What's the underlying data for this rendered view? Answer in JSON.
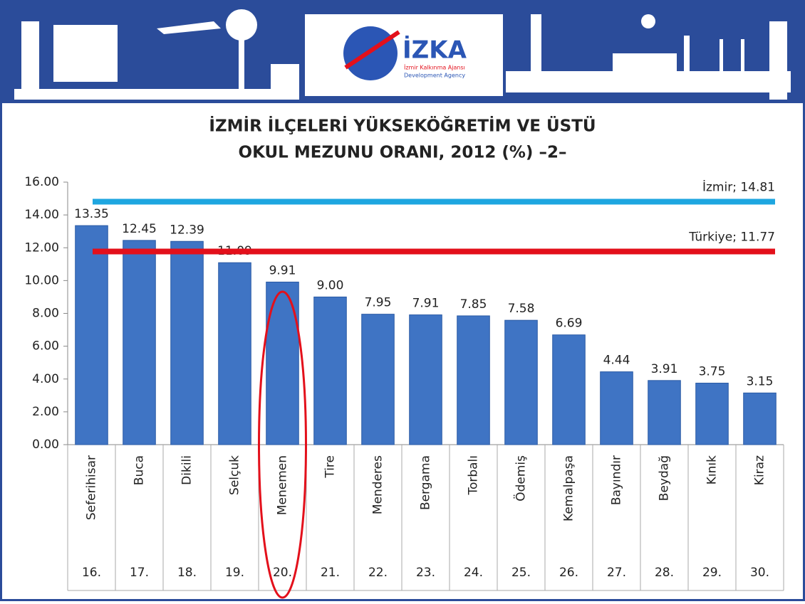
{
  "header": {
    "logo": "İZKA",
    "agency_tr": "İzmir Kalkınma Ajansı",
    "agency_en": "Development Agency"
  },
  "chart_data": {
    "type": "bar",
    "title": "İZMİR İLÇELERİ YÜKSEKÖĞRETİM VE ÜSTÜ",
    "subtitle": "OKUL MEZUNU ORANI, 2012 (%) –2–",
    "categories": [
      "Seferihisar",
      "Buca",
      "Dikili",
      "Selçuk",
      "Menemen",
      "Tire",
      "Menderes",
      "Bergama",
      "Torbalı",
      "Ödemiş",
      "Kemalpaşa",
      "Bayındır",
      "Beydağ",
      "Kınık",
      "Kiraz"
    ],
    "ranks": [
      "16.",
      "17.",
      "18.",
      "19.",
      "20.",
      "21.",
      "22.",
      "23.",
      "24.",
      "25.",
      "26.",
      "27.",
      "28.",
      "29.",
      "30."
    ],
    "values": [
      13.35,
      12.45,
      12.39,
      11.09,
      9.91,
      9.0,
      7.95,
      7.91,
      7.85,
      7.58,
      6.69,
      4.44,
      3.91,
      3.75,
      3.15
    ],
    "value_labels": [
      "13.35",
      "12.45",
      "12.39",
      "11.09",
      "9.91",
      "9.00",
      "7.95",
      "7.91",
      "7.85",
      "7.58",
      "6.69",
      "4.44",
      "3.91",
      "3.75",
      "3.15"
    ],
    "color": "#3f74c4",
    "ylim": [
      0,
      16
    ],
    "yticks": [
      {
        "value": 0,
        "label": "0.00"
      },
      {
        "value": 2,
        "label": "2.00"
      },
      {
        "value": 4,
        "label": "4.00"
      },
      {
        "value": 6,
        "label": "6.00"
      },
      {
        "value": 8,
        "label": "8.00"
      },
      {
        "value": 10,
        "label": "10.00"
      },
      {
        "value": 12,
        "label": "12.00"
      },
      {
        "value": 14,
        "label": "14.00"
      },
      {
        "value": 16,
        "label": "16.00"
      }
    ],
    "reference_lines": [
      {
        "label": "İzmir; 14.81",
        "value": 14.81,
        "color": "#1ea6e0"
      },
      {
        "label": "Türkiye; 11.77",
        "value": 11.77,
        "color": "#e3101b"
      }
    ]
  }
}
